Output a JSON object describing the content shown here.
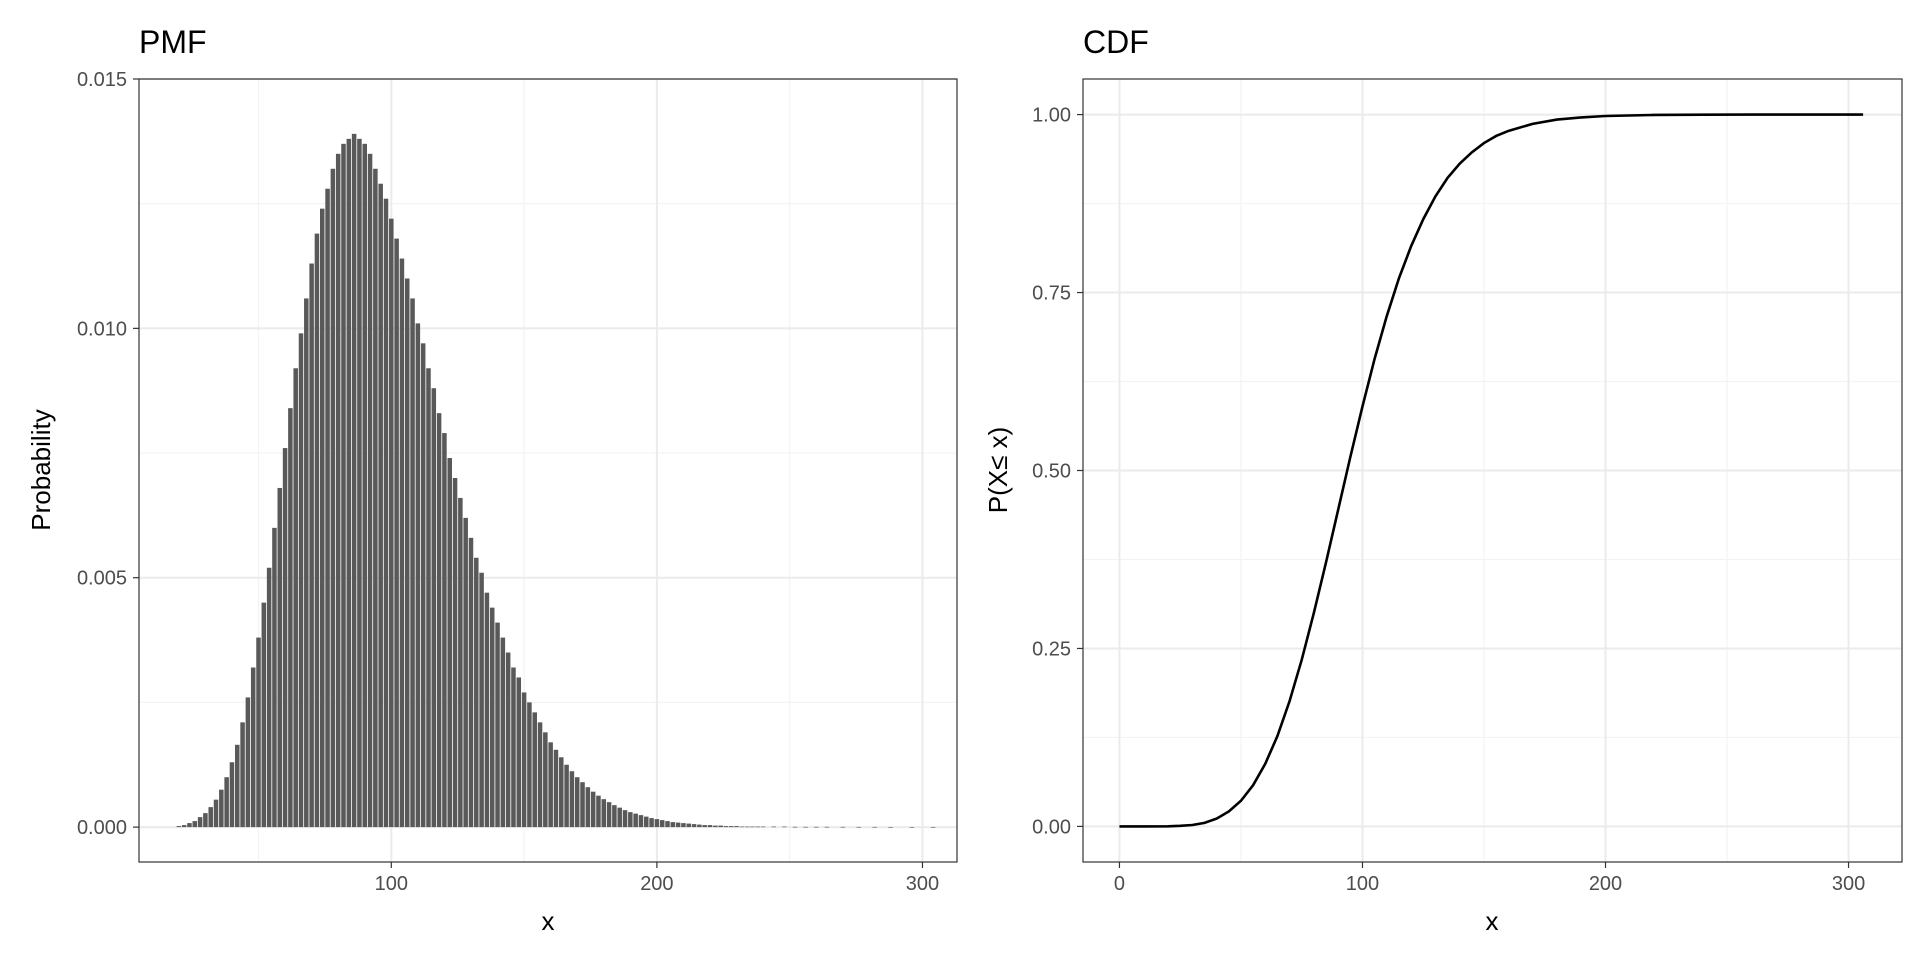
{
  "colors": {
    "bar": "#595959",
    "line": "#000000",
    "grid": "#ebebeb",
    "frame": "#333333"
  },
  "chart_data": [
    {
      "type": "bar",
      "title": "PMF",
      "xlabel": "x",
      "ylabel": "Probability",
      "xlim": [
        5,
        313
      ],
      "ylim": [
        -0.0007,
        0.015
      ],
      "x_ticks": [
        100,
        200,
        300
      ],
      "x_tick_labels": [
        "100",
        "200",
        "300"
      ],
      "y_ticks": [
        0,
        0.005,
        0.01,
        0.015
      ],
      "y_tick_labels": [
        "0.000",
        "0.005",
        "0.010",
        "0.015"
      ],
      "grid": true,
      "series": [
        {
          "x": [
            20,
            22,
            24,
            26,
            28,
            30,
            32,
            34,
            36,
            38,
            40,
            42,
            44,
            46,
            48,
            50,
            52,
            54,
            56,
            58,
            60,
            62,
            64,
            66,
            68,
            70,
            72,
            74,
            76,
            78,
            80,
            82,
            84,
            86,
            88,
            90,
            92,
            94,
            96,
            98,
            100,
            102,
            104,
            106,
            108,
            110,
            112,
            114,
            116,
            118,
            120,
            122,
            124,
            126,
            128,
            130,
            132,
            134,
            136,
            138,
            140,
            142,
            144,
            146,
            148,
            150,
            152,
            154,
            156,
            158,
            160,
            162,
            164,
            166,
            168,
            170,
            172,
            174,
            176,
            178,
            180,
            182,
            184,
            186,
            188,
            190,
            192,
            194,
            196,
            198,
            200,
            202,
            204,
            206,
            208,
            210,
            212,
            214,
            216,
            218,
            220,
            222,
            224,
            226,
            228,
            230,
            232,
            234,
            236,
            238,
            240,
            244,
            248,
            252,
            256,
            260,
            264,
            270,
            276,
            282,
            288,
            296,
            304
          ],
          "values": [
            2e-05,
            4e-05,
            8e-05,
            0.00012,
            0.0002,
            0.00028,
            0.0004,
            0.00055,
            0.00075,
            0.001,
            0.0013,
            0.00165,
            0.0021,
            0.0026,
            0.0032,
            0.0038,
            0.0045,
            0.0052,
            0.006,
            0.0068,
            0.0076,
            0.0084,
            0.0092,
            0.0099,
            0.0106,
            0.0113,
            0.0119,
            0.0124,
            0.0128,
            0.0132,
            0.0135,
            0.0137,
            0.0138,
            0.0139,
            0.0138,
            0.0137,
            0.0135,
            0.0132,
            0.0129,
            0.0126,
            0.0122,
            0.0118,
            0.0114,
            0.011,
            0.0106,
            0.0101,
            0.0097,
            0.0092,
            0.0088,
            0.0083,
            0.0079,
            0.0074,
            0.007,
            0.0066,
            0.0062,
            0.0058,
            0.0054,
            0.0051,
            0.0047,
            0.0044,
            0.0041,
            0.0038,
            0.0035,
            0.0032,
            0.003,
            0.0027,
            0.0025,
            0.0023,
            0.0021,
            0.0019,
            0.0017,
            0.00155,
            0.0014,
            0.00125,
            0.00112,
            0.001,
            0.0009,
            0.0008,
            0.00071,
            0.00063,
            0.00056,
            0.0005,
            0.00044,
            0.00039,
            0.00034,
            0.0003,
            0.00027,
            0.00024,
            0.00021,
            0.00018,
            0.00016,
            0.00014,
            0.00012,
            0.0001,
            9e-05,
            8e-05,
            7e-05,
            6e-05,
            5e-05,
            4e-05,
            4e-05,
            3e-05,
            3e-05,
            2e-05,
            2e-05,
            2e-05,
            1e-05,
            1e-05,
            1e-05,
            1e-05,
            1e-05,
            1e-05,
            1e-05,
            5e-06,
            5e-06,
            5e-06,
            5e-06,
            4e-06,
            3e-06,
            3e-06,
            2e-06,
            2e-06,
            2e-06
          ]
        }
      ]
    },
    {
      "type": "line",
      "title": "CDF",
      "xlabel": "x",
      "ylabel": "P(X≤ x)",
      "xlim": [
        -15,
        322
      ],
      "ylim": [
        -0.05,
        1.05
      ],
      "x_ticks": [
        0,
        100,
        200,
        300
      ],
      "x_tick_labels": [
        "0",
        "100",
        "200",
        "300"
      ],
      "y_ticks": [
        0,
        0.25,
        0.5,
        0.75,
        1
      ],
      "y_tick_labels": [
        "0.00",
        "0.25",
        "0.50",
        "0.75",
        "1.00"
      ],
      "grid": true,
      "series": [
        {
          "x": [
            0,
            10,
            20,
            25,
            30,
            35,
            40,
            45,
            50,
            55,
            60,
            65,
            70,
            75,
            80,
            85,
            90,
            95,
            100,
            105,
            110,
            115,
            120,
            125,
            130,
            135,
            140,
            145,
            150,
            155,
            160,
            170,
            180,
            190,
            200,
            220,
            240,
            260,
            280,
            306
          ],
          "values": [
            0,
            0,
            0.0002,
            0.0008,
            0.002,
            0.005,
            0.011,
            0.021,
            0.036,
            0.058,
            0.088,
            0.127,
            0.176,
            0.234,
            0.3,
            0.371,
            0.445,
            0.519,
            0.59,
            0.657,
            0.717,
            0.77,
            0.815,
            0.853,
            0.885,
            0.911,
            0.931,
            0.947,
            0.96,
            0.97,
            0.977,
            0.987,
            0.993,
            0.996,
            0.998,
            0.9995,
            0.9999,
            1,
            1,
            1
          ]
        }
      ]
    }
  ]
}
